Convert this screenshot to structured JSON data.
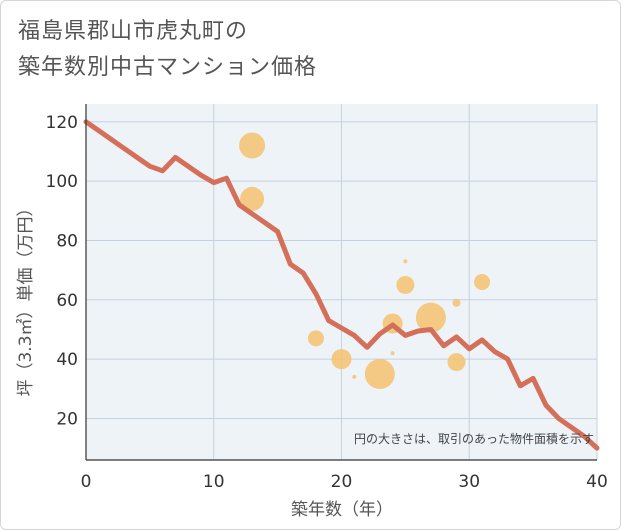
{
  "title_lines": [
    "福島県郡山市虎丸町の",
    "築年数別中古マンション価格"
  ],
  "chart_data": {
    "type": "scatter",
    "title": "福島県郡山市虎丸町の築年数別中古マンション価格",
    "xlabel": "築年数（年）",
    "ylabel": "坪（3.3㎡）単価（万円）",
    "xlim": [
      0,
      40
    ],
    "ylim": [
      6,
      126
    ],
    "xticks": [
      0,
      10,
      20,
      30,
      40
    ],
    "yticks": [
      20,
      40,
      60,
      80,
      100,
      120
    ],
    "grid": true,
    "annotation": "円の大きさは、取引のあった物件面積を示す",
    "colors": {
      "line": "#d4705a",
      "bubble": "#f5c06a",
      "plot_bg": "#eef3f8",
      "grid": "#c5d2e0"
    },
    "line": {
      "x": [
        0,
        1,
        2,
        3,
        4,
        5,
        6,
        7,
        8,
        9,
        10,
        11,
        12,
        13,
        14,
        15,
        16,
        17,
        18,
        19,
        20,
        21,
        22,
        23,
        24,
        25,
        26,
        27,
        28,
        29,
        30,
        31,
        32,
        33,
        34,
        35,
        36,
        37,
        38,
        39,
        40
      ],
      "y": [
        120,
        117,
        114,
        111,
        108,
        105,
        103.5,
        108,
        105,
        102,
        99.5,
        101,
        92,
        89,
        86,
        83,
        72,
        69,
        62,
        53,
        50.5,
        48,
        44,
        48.5,
        51.5,
        48,
        49.5,
        50,
        44.5,
        47.5,
        43.5,
        46.5,
        42.5,
        40,
        31,
        33.5,
        24.5,
        20,
        17,
        14,
        10
      ]
    },
    "bubbles": [
      {
        "x": 13,
        "y": 112,
        "size": 13
      },
      {
        "x": 13,
        "y": 94,
        "size": 12
      },
      {
        "x": 18,
        "y": 47,
        "size": 8
      },
      {
        "x": 20,
        "y": 40,
        "size": 10
      },
      {
        "x": 21,
        "y": 34,
        "size": 2
      },
      {
        "x": 23,
        "y": 35,
        "size": 15
      },
      {
        "x": 24,
        "y": 52,
        "size": 10
      },
      {
        "x": 24,
        "y": 42,
        "size": 2
      },
      {
        "x": 25,
        "y": 73,
        "size": 2
      },
      {
        "x": 25,
        "y": 65,
        "size": 9
      },
      {
        "x": 27,
        "y": 54,
        "size": 15
      },
      {
        "x": 29,
        "y": 59,
        "size": 4
      },
      {
        "x": 29,
        "y": 39,
        "size": 9
      },
      {
        "x": 31,
        "y": 66,
        "size": 8
      }
    ]
  }
}
